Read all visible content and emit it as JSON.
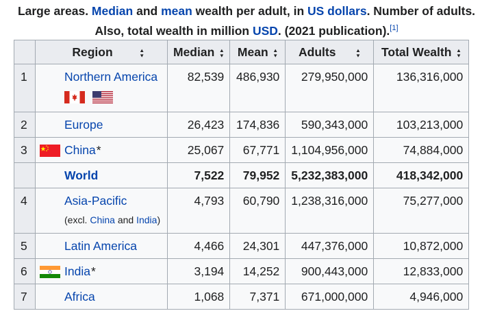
{
  "caption": {
    "text1": "Large areas. ",
    "median": "Median",
    "and": " and ",
    "mean": "mean",
    "text2": " wealth per adult, in ",
    "usd_long": "US dollars",
    "text3": ". Number of adults. Also, total wealth in million ",
    "usd": "USD",
    "text4": ". (2021 publication).",
    "ref": "[1]"
  },
  "headers": {
    "rank": "",
    "region": "Region",
    "median": "Median",
    "mean": "Mean",
    "adults": "Adults",
    "total": "Total Wealth",
    "sort_icon": "sort-arrows-icon"
  },
  "rows": [
    {
      "rank": "1",
      "region": "Northern America",
      "median": "82,539",
      "mean": "486,930",
      "adults": "279,950,000",
      "total": "136,316,000"
    },
    {
      "rank": "2",
      "region": "Europe",
      "median": "26,423",
      "mean": "174,836",
      "adults": "590,343,000",
      "total": "103,213,000"
    },
    {
      "rank": "3",
      "region": "China",
      "star": "*",
      "median": "25,067",
      "mean": "67,771",
      "adults": "1,104,956,000",
      "total": "74,884,000"
    },
    {
      "rank": "",
      "region": "World",
      "median": "7,522",
      "mean": "79,952",
      "adults": "5,232,383,000",
      "total": "418,342,000"
    },
    {
      "rank": "4",
      "region": "Asia-Pacific",
      "note_open": "(excl. ",
      "note_china": "China",
      "note_and": " and ",
      "note_india": "India",
      "note_close": ")",
      "median": "4,793",
      "mean": "60,790",
      "adults": "1,238,316,000",
      "total": "75,277,000"
    },
    {
      "rank": "5",
      "region": "Latin America",
      "median": "4,466",
      "mean": "24,301",
      "adults": "447,376,000",
      "total": "10,872,000"
    },
    {
      "rank": "6",
      "region": "India",
      "star": "*",
      "median": "3,194",
      "mean": "14,252",
      "adults": "900,443,000",
      "total": "12,833,000"
    },
    {
      "rank": "7",
      "region": "Africa",
      "median": "1,068",
      "mean": "7,371",
      "adults": "671,000,000",
      "total": "4,946,000"
    }
  ],
  "colors": {
    "link": "#0645ad",
    "header_bg": "#eaecf0",
    "cell_bg": "#f8f9fa",
    "border": "#a2a9b1"
  }
}
